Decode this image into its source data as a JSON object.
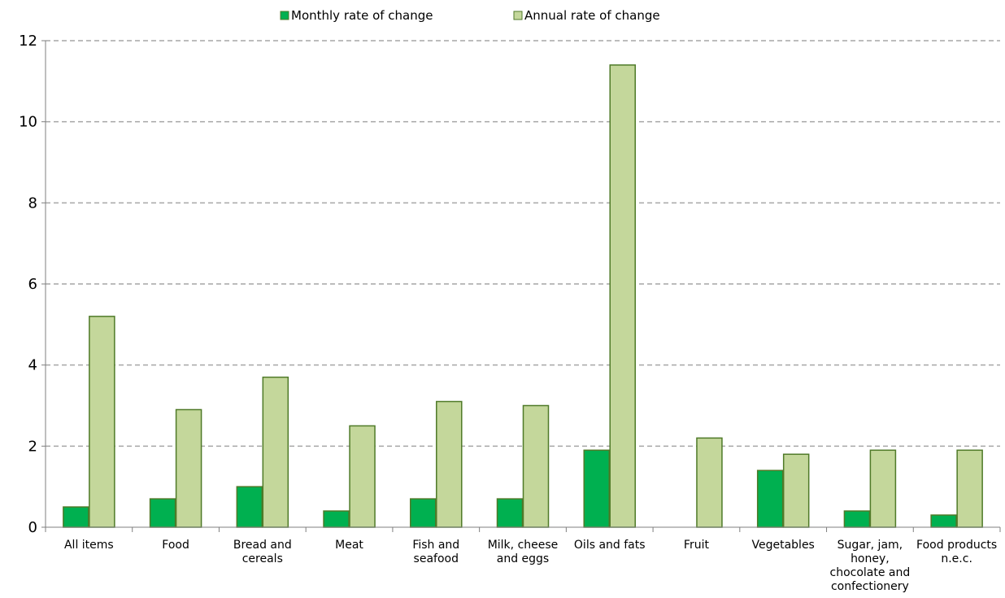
{
  "colors": {
    "monthly": "#00b050",
    "annual": "#c4d79b",
    "bar_border": "#4f7a28",
    "grid": "#a6a6a6",
    "axis": "#7f7f7f"
  },
  "chart_data": {
    "type": "bar",
    "title": "",
    "xlabel": "",
    "ylabel": "",
    "ylim": [
      0,
      12
    ],
    "yticks": [
      "0",
      "2",
      "4",
      "6",
      "8",
      "10",
      "12"
    ],
    "grid": "horizontal-dashed",
    "legend_position": "top",
    "categories": [
      [
        "All items"
      ],
      [
        "Food"
      ],
      [
        "Bread and",
        "cereals"
      ],
      [
        "Meat"
      ],
      [
        "Fish and",
        "seafood"
      ],
      [
        "Milk, cheese",
        "and eggs"
      ],
      [
        "Oils and fats"
      ],
      [
        "Fruit"
      ],
      [
        "Vegetables"
      ],
      [
        "Sugar, jam,",
        "honey,",
        "chocolate and",
        "confectionery"
      ],
      [
        "Food products",
        "n.e.c."
      ]
    ],
    "series": [
      {
        "name": "Monthly rate of change",
        "color_key": "monthly",
        "values": [
          0.5,
          0.7,
          1.0,
          0.4,
          0.7,
          0.7,
          1.9,
          0.0,
          1.4,
          0.4,
          0.3
        ]
      },
      {
        "name": "Annual rate of change",
        "color_key": "annual",
        "values": [
          5.2,
          2.9,
          3.7,
          2.5,
          3.1,
          3.0,
          11.4,
          2.2,
          1.8,
          1.9,
          1.9
        ]
      }
    ]
  }
}
